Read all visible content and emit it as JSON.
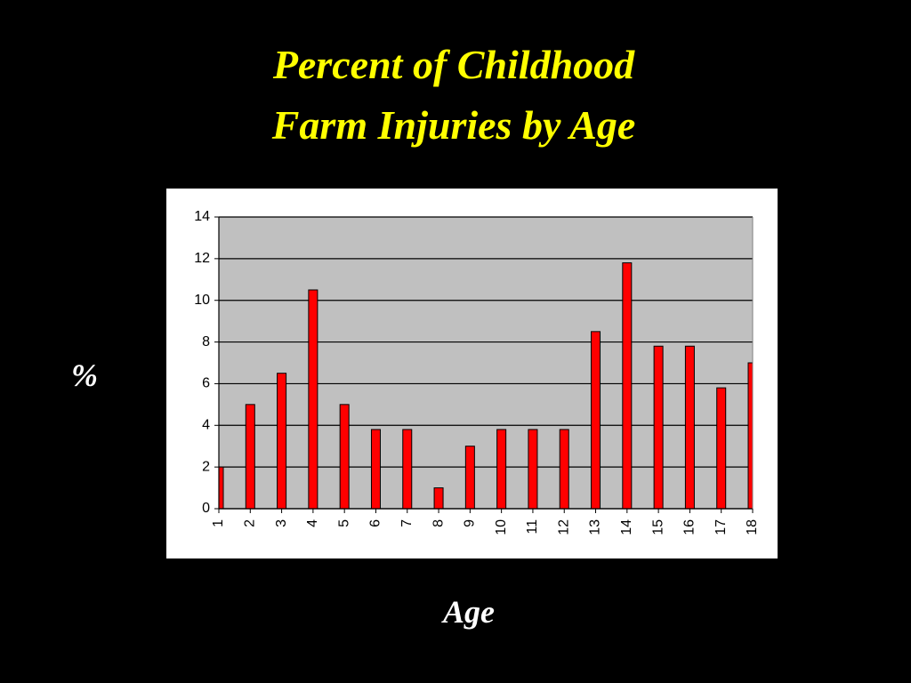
{
  "chart_data": {
    "type": "bar",
    "title": [
      "Percent of Childhood",
      "Farm Injuries by Age"
    ],
    "y_label": "%",
    "x_label": "Age",
    "x": [
      1,
      2,
      3,
      4,
      5,
      6,
      7,
      8,
      9,
      10,
      11,
      12,
      13,
      14,
      15,
      16,
      17,
      18
    ],
    "values": [
      2,
      5,
      6.5,
      10.5,
      5,
      3.8,
      3.8,
      1,
      3,
      3.8,
      3.8,
      3.8,
      8.5,
      11.8,
      7.8,
      7.8,
      5.8,
      7
    ],
    "color": "#ff0000",
    "xlim": [
      1,
      18
    ],
    "xticks": [
      1,
      2,
      3,
      4,
      5,
      6,
      7,
      8,
      9,
      10,
      11,
      12,
      13,
      14,
      15,
      16,
      17,
      18
    ],
    "ylim": [
      0,
      14
    ],
    "yticks": [
      0,
      2,
      4,
      6,
      8,
      10,
      12,
      14
    ],
    "grid": true
  }
}
